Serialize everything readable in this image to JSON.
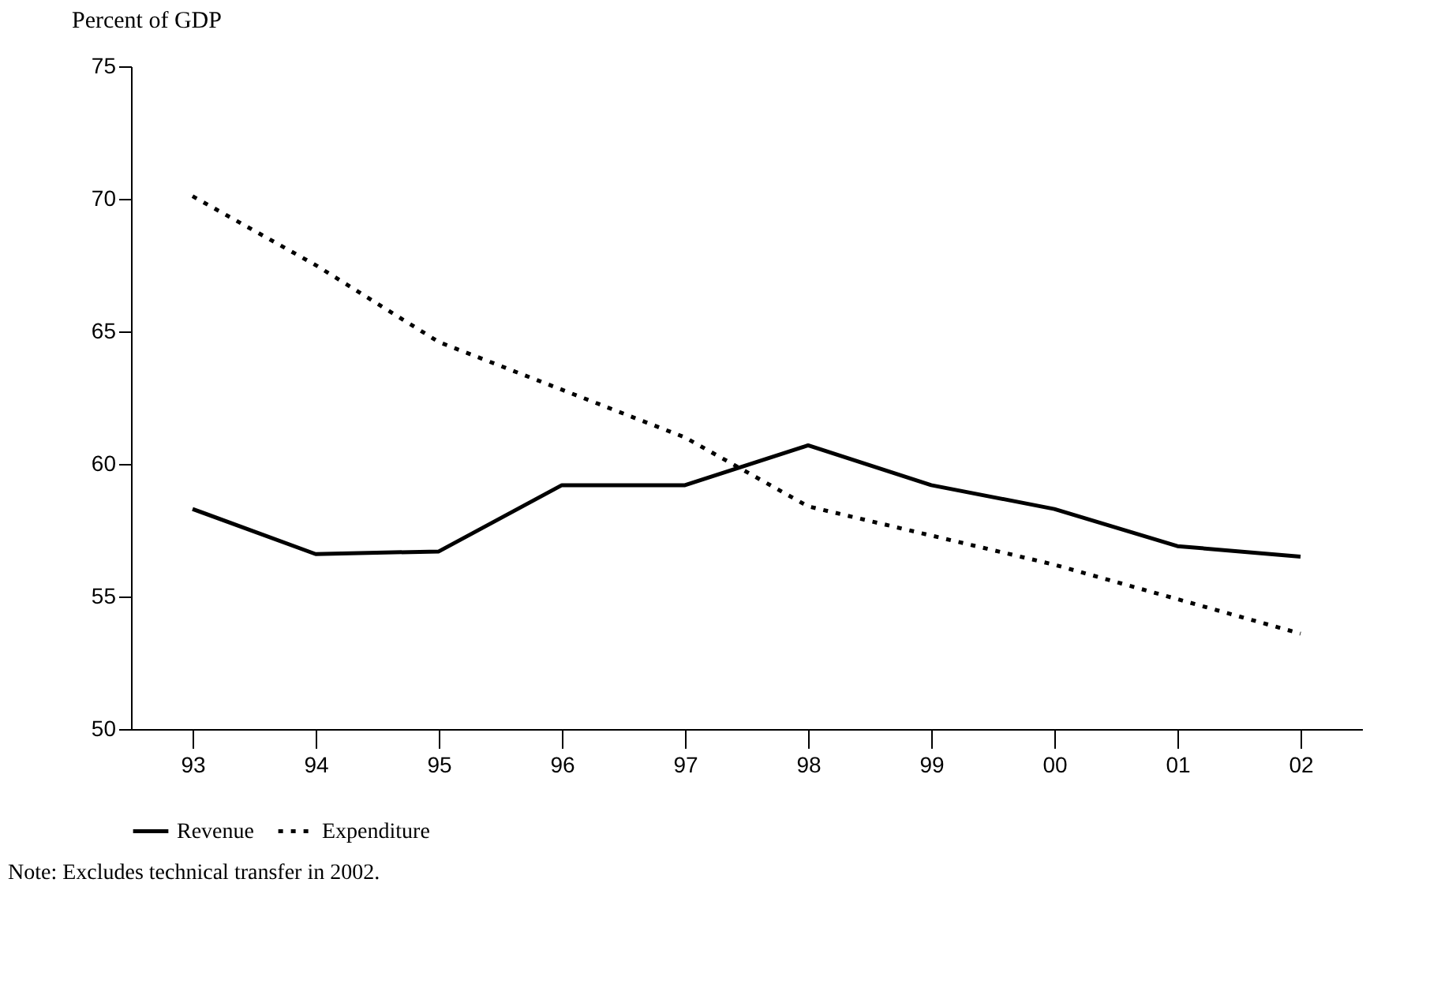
{
  "chart_data": {
    "type": "line",
    "ylabel": "Percent of GDP",
    "categories": [
      "93",
      "94",
      "95",
      "96",
      "97",
      "98",
      "99",
      "00",
      "01",
      "02"
    ],
    "series": [
      {
        "name": "Revenue",
        "color": "#000000",
        "line_style": "solid",
        "values": [
          58.3,
          56.6,
          56.7,
          59.2,
          59.2,
          60.7,
          59.2,
          58.3,
          56.9,
          56.5
        ]
      },
      {
        "name": "Expenditure",
        "color": "#000000",
        "line_style": "dotted",
        "values": [
          70.1,
          67.5,
          64.6,
          62.8,
          61.0,
          58.4,
          57.3,
          56.2,
          54.9,
          53.6
        ]
      }
    ],
    "ylim": [
      50,
      75
    ],
    "yticks": [
      50,
      55,
      60,
      65,
      70,
      75
    ],
    "grid": false,
    "legend": "bottom left",
    "marker": "none",
    "annotations": [
      "Note: Excludes technical transfer in 2002."
    ]
  }
}
